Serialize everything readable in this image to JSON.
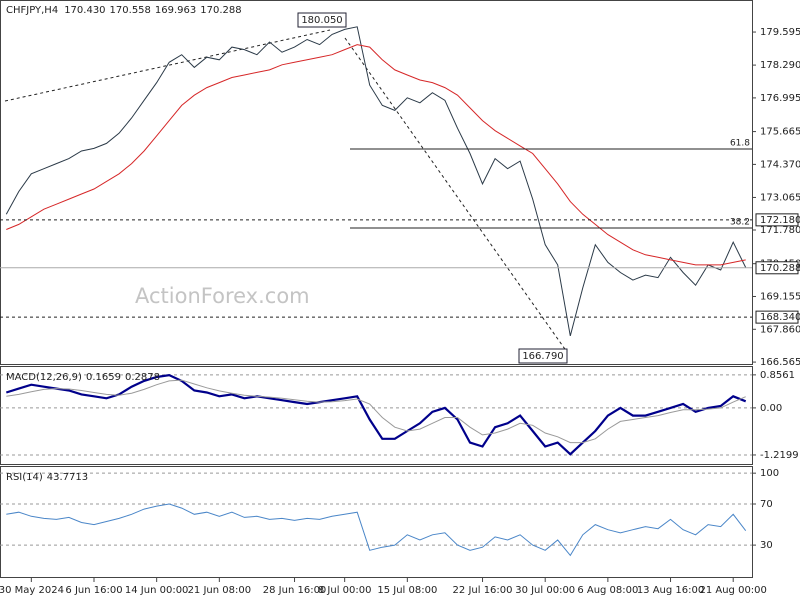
{
  "chart_data": [
    {
      "type": "line",
      "symbol": "CHFJPY,H4",
      "ohlc": [
        {
          "value": 170.43,
          "label": "170.430"
        },
        {
          "value": 170.558,
          "label": "170.558"
        },
        {
          "value": 169.963,
          "label": "169.963"
        },
        {
          "value": 170.288,
          "label": "170.288"
        }
      ],
      "watermark": "ActionForex.com",
      "categories": [
        null,
        null,
        "30 May 2024",
        null,
        null,
        null,
        null,
        "6 Jun 16:00",
        null,
        null,
        null,
        null,
        "14 Jun 00:00",
        null,
        null,
        null,
        null,
        "21 Jun 08:00",
        null,
        null,
        null,
        null,
        null,
        "28 Jun 16:00",
        null,
        null,
        null,
        "8 Jul 00:00",
        null,
        null,
        null,
        null,
        "15 Jul 08:00",
        null,
        null,
        null,
        null,
        null,
        "22 Jul 16:00",
        null,
        null,
        null,
        null,
        "30 Jul 00:00",
        null,
        null,
        null,
        null,
        "6 Aug 08:00",
        null,
        null,
        null,
        null,
        "13 Aug 16:00",
        null,
        null,
        null,
        null,
        "21 Aug 00:00",
        null
      ],
      "series": [
        {
          "color": "#2b3a48",
          "values": [
            172.4,
            173.3,
            174.0,
            174.2,
            174.4,
            174.6,
            174.9,
            175.0,
            175.2,
            175.6,
            176.2,
            176.9,
            177.6,
            178.4,
            178.7,
            178.2,
            178.6,
            178.5,
            179.0,
            178.9,
            178.7,
            179.2,
            178.8,
            179.0,
            179.3,
            179.1,
            179.5,
            179.7,
            179.8,
            177.5,
            176.7,
            176.5,
            177.0,
            176.8,
            177.2,
            176.9,
            175.8,
            174.8,
            173.6,
            174.6,
            174.2,
            174.5,
            173.0,
            171.2,
            170.4,
            167.6,
            169.5,
            171.2,
            170.5,
            170.1,
            169.8,
            170.0,
            169.9,
            170.7,
            170.1,
            169.6,
            170.4,
            170.2,
            171.3,
            170.3
          ]
        },
        {
          "color": "#d62728",
          "values": [
            171.8,
            172.0,
            172.3,
            172.6,
            172.8,
            173.0,
            173.2,
            173.4,
            173.7,
            174.0,
            174.4,
            174.9,
            175.5,
            176.1,
            176.7,
            177.1,
            177.4,
            177.6,
            177.8,
            177.9,
            178.0,
            178.1,
            178.3,
            178.4,
            178.5,
            178.6,
            178.7,
            178.9,
            179.1,
            179.0,
            178.5,
            178.1,
            177.9,
            177.7,
            177.6,
            177.4,
            177.1,
            176.6,
            176.1,
            175.7,
            175.4,
            175.1,
            174.8,
            174.2,
            173.6,
            172.9,
            172.4,
            172.0,
            171.6,
            171.3,
            171.0,
            170.8,
            170.7,
            170.6,
            170.5,
            170.4,
            170.4,
            170.4,
            170.5,
            170.6
          ]
        }
      ],
      "ylim": [
        166.45,
        180.86
      ],
      "yticks": [
        179.595,
        {
          "value": 178.29,
          "label": "178.290"
        },
        176.995,
        175.665,
        {
          "value": 174.37,
          "label": "174.370"
        },
        173.065,
        {
          "value": 171.78,
          "label": "171.780"
        },
        {
          "value": 170.45,
          "label": "170.450"
        },
        169.155,
        {
          "value": 167.86,
          "label": "167.860"
        },
        166.565
      ],
      "grid": false,
      "levels": {
        "values": [
          172.18,
          170.288,
          168.34
        ],
        "value_labels": [
          "172.180",
          "170.288",
          "168.340"
        ]
      },
      "fibonacci": [
        {
          "ratio": 61.8,
          "price": 174.98
        },
        {
          "ratio": 38.2,
          "price": 171.86
        }
      ],
      "swings": [
        {
          "value": 180.05,
          "label": "180.050"
        },
        {
          "value": 166.79,
          "label": "166.790"
        }
      ]
    },
    {
      "type": "line",
      "label": "MACD(12,26,9)",
      "readings": [
        0.1659,
        0.2878
      ],
      "series": [
        {
          "color": "#00008b",
          "values": [
            0.4,
            0.5,
            0.6,
            0.55,
            0.5,
            0.45,
            0.35,
            0.3,
            0.25,
            0.35,
            0.55,
            0.7,
            0.8,
            0.85,
            0.7,
            0.45,
            0.4,
            0.3,
            0.35,
            0.25,
            0.3,
            0.25,
            0.2,
            0.15,
            0.1,
            0.15,
            0.2,
            0.25,
            0.3,
            -0.3,
            -0.8,
            -0.8,
            -0.6,
            -0.4,
            -0.1,
            0.0,
            -0.3,
            -0.9,
            -1.0,
            -0.5,
            -0.4,
            -0.2,
            -0.6,
            -1.0,
            -0.9,
            -1.2,
            -0.9,
            -0.6,
            -0.2,
            0.0,
            -0.2,
            -0.2,
            -0.1,
            0.0,
            0.1,
            -0.1,
            0.0,
            0.05,
            0.3,
            0.17
          ]
        },
        {
          "color": "#9a9a9a",
          "values": [
            0.3,
            0.35,
            0.42,
            0.48,
            0.5,
            0.49,
            0.45,
            0.4,
            0.35,
            0.33,
            0.38,
            0.48,
            0.6,
            0.7,
            0.72,
            0.62,
            0.52,
            0.44,
            0.38,
            0.33,
            0.3,
            0.28,
            0.25,
            0.21,
            0.17,
            0.15,
            0.16,
            0.19,
            0.23,
            0.1,
            -0.25,
            -0.5,
            -0.6,
            -0.55,
            -0.4,
            -0.25,
            -0.25,
            -0.5,
            -0.7,
            -0.65,
            -0.55,
            -0.4,
            -0.45,
            -0.65,
            -0.75,
            -0.9,
            -0.9,
            -0.8,
            -0.55,
            -0.35,
            -0.3,
            -0.25,
            -0.2,
            -0.12,
            -0.05,
            -0.05,
            -0.03,
            0.0,
            0.15,
            0.29
          ]
        }
      ],
      "ylim": [
        -1.48,
        1.06
      ],
      "yticks": [
        0.8561,
        {
          "value": 0,
          "label": "0.00"
        },
        -1.2199
      ],
      "grid": true
    },
    {
      "type": "line",
      "label": "RSI(14)",
      "readings": [
        43.7713
      ],
      "series": [
        {
          "color": "#4a86c8",
          "values": [
            60,
            62,
            58,
            56,
            55,
            57,
            52,
            50,
            53,
            56,
            60,
            65,
            68,
            70,
            66,
            60,
            62,
            58,
            62,
            57,
            58,
            55,
            56,
            54,
            56,
            55,
            58,
            60,
            62,
            25,
            28,
            30,
            40,
            35,
            40,
            42,
            30,
            25,
            28,
            38,
            35,
            40,
            30,
            25,
            35,
            20,
            40,
            50,
            45,
            42,
            45,
            48,
            46,
            55,
            45,
            40,
            50,
            48,
            60,
            44
          ]
        }
      ],
      "ylim": [
        -2,
        106
      ],
      "yticks": [
        100,
        70,
        30
      ],
      "grid": true
    }
  ]
}
